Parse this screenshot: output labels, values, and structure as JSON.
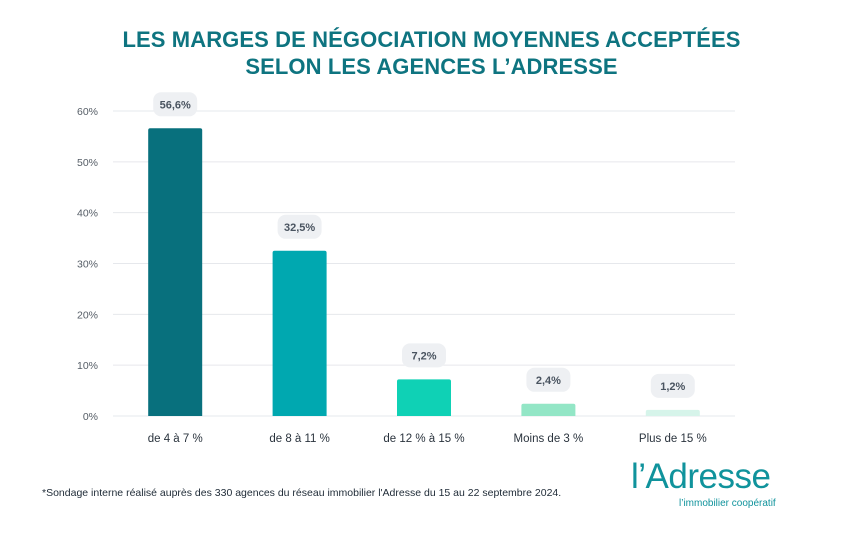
{
  "title": {
    "line1": "LES MARGES DE NÉGOCIATION MOYENNES ACCEPTÉES",
    "line2": "SELON LES AGENCES L’ADRESSE"
  },
  "footnote": "*Sondage interne réalisé auprès des 330 agences du réseau immobilier l'Adresse du 15 au 22 septembre 2024.",
  "brand": {
    "name": "l’Adresse",
    "tagline": "l’immobilier coopératif"
  },
  "chart_data": {
    "type": "bar",
    "title": "LES MARGES DE NÉGOCIATION MOYENNES ACCEPTÉES SELON LES AGENCES L’ADRESSE",
    "xlabel": "",
    "ylabel": "",
    "ylim": [
      0,
      60
    ],
    "grid": true,
    "y_ticks": [
      "0%",
      "10%",
      "20%",
      "30%",
      "40%",
      "50%",
      "60%"
    ],
    "y_tick_values": [
      0,
      10,
      20,
      30,
      40,
      50,
      60
    ],
    "categories": [
      "de 4 à 7 %",
      "de 8 à 11 %",
      "de 12 % à 15 %",
      "Moins de 3 %",
      "Plus de 15 %"
    ],
    "values": [
      56.6,
      32.5,
      7.2,
      2.4,
      1.2
    ],
    "data_labels": [
      "56,6%",
      "32,5%",
      "7,2%",
      "2,4%",
      "1,2%"
    ],
    "colors": [
      "#08707d",
      "#00a8b0",
      "#0fd1b5",
      "#93e6c6",
      "#d6f4ea"
    ]
  }
}
